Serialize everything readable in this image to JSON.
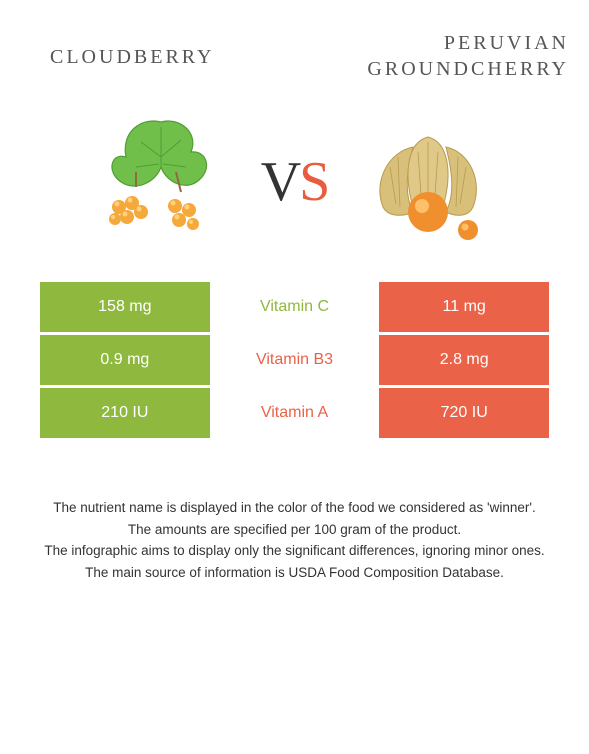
{
  "header": {
    "left_name": "CLOUDBERRY",
    "right_name": "PERUVIAN GROUNDCHERRY"
  },
  "vs": {
    "v": "V",
    "s": "S"
  },
  "colors": {
    "left_bg": "#8fb93e",
    "right_bg": "#ea6348",
    "vs_v": "#333333",
    "vs_s": "#e85c3f",
    "winner_left": "#8fb93e",
    "winner_right": "#ea6348"
  },
  "rows": [
    {
      "left": "158 mg",
      "label": "Vitamin C",
      "right": "11 mg",
      "winner": "left"
    },
    {
      "left": "0.9 mg",
      "label": "Vitamin B3",
      "right": "2.8 mg",
      "winner": "right"
    },
    {
      "left": "210 IU",
      "label": "Vitamin A",
      "right": "720 IU",
      "winner": "right"
    }
  ],
  "footnotes": [
    "The nutrient name is displayed in the color of the food we considered as 'winner'.",
    "The amounts are specified per 100 gram of the product.",
    "The infographic aims to display only the significant differences, ignoring minor ones.",
    "The main source of information is USDA Food Composition Database."
  ],
  "illustration": {
    "cloudberry": {
      "leaf_color": "#6fbf4a",
      "leaf_dark": "#4f9e34",
      "berry_color": "#f5a83c",
      "berry_highlight": "#ffd27a"
    },
    "groundcherry": {
      "husk_color": "#d9c07a",
      "husk_dark": "#b89a4f",
      "fruit_color": "#ef8f2e",
      "fruit_highlight": "#ffc06a"
    }
  }
}
